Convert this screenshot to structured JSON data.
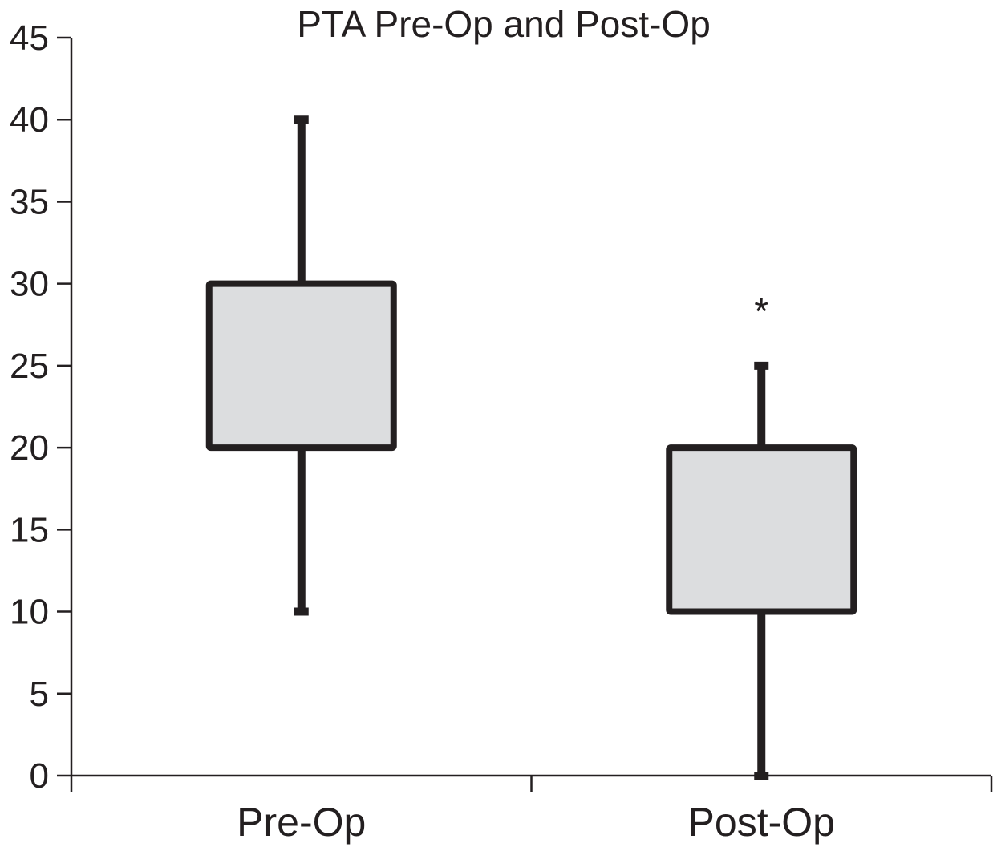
{
  "chart_data": {
    "type": "box",
    "title": "PTA Pre-Op and Post-Op",
    "xlabel": "",
    "ylabel": "",
    "ylim": [
      0,
      45
    ],
    "yticks": [
      0,
      5,
      10,
      15,
      20,
      25,
      30,
      35,
      40,
      45
    ],
    "grid": false,
    "categories": [
      "Pre-Op",
      "Post-Op"
    ],
    "boxes": [
      {
        "category": "Pre-Op",
        "whisker_low": 10,
        "q1": 20,
        "q3": 30,
        "whisker_high": 40,
        "outliers": []
      },
      {
        "category": "Post-Op",
        "whisker_low": 0,
        "q1": 10,
        "q3": 20,
        "whisker_high": 25,
        "outliers": []
      }
    ],
    "annotations": [
      {
        "text": "*",
        "category": "Post-Op",
        "y": 29
      }
    ],
    "colors": {
      "box_fill": "#dcdddf",
      "stroke": "#231f20",
      "axis": "#231f20"
    }
  }
}
